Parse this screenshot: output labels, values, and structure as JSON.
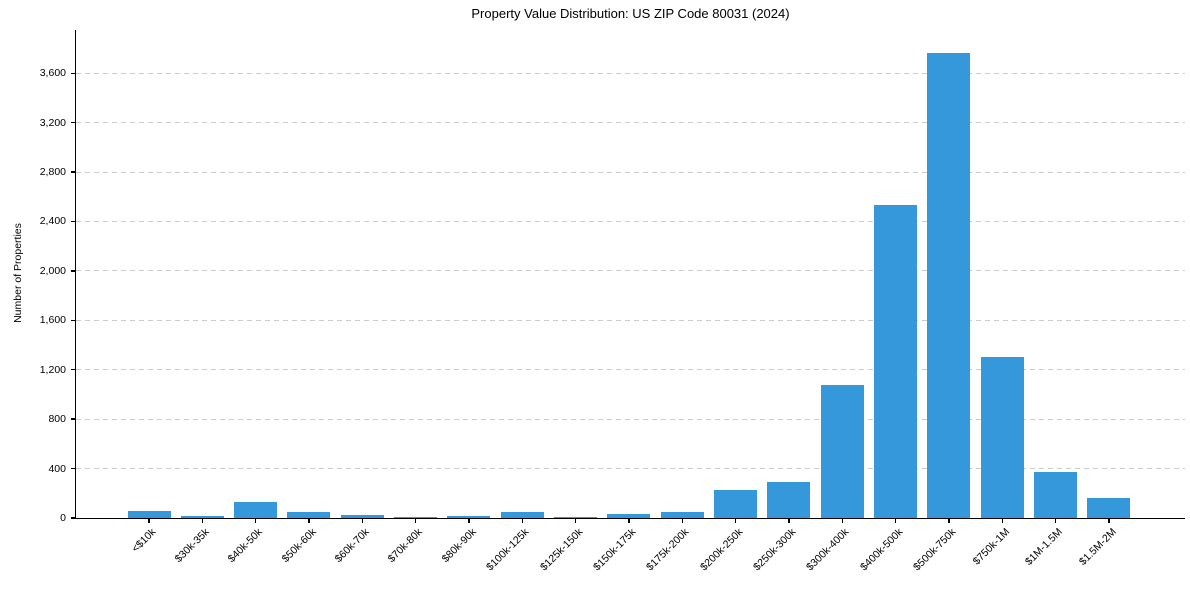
{
  "figure": {
    "title": "Property Value Distribution: US ZIP Code 80031 (2024)"
  },
  "chart_data": {
    "type": "bar",
    "title": "Property Value Distribution: US ZIP Code 80031 (2024)",
    "xlabel": "",
    "ylabel": "Number of Properties",
    "categories": [
      "<$10k",
      "$30k-35k",
      "$40k-50k",
      "$50k-60k",
      "$60k-70k",
      "$70k-80k",
      "$80k-90k",
      "$100k-125k",
      "$125k-150k",
      "$150k-175k",
      "$175k-200k",
      "$200k-250k",
      "$250k-300k",
      "$300k-400k",
      "$400k-500k",
      "$500k-750k",
      "$750k-1M",
      "$1M-1.5M",
      "$1.5M-2M"
    ],
    "values": [
      60,
      20,
      130,
      50,
      25,
      10,
      15,
      50,
      10,
      30,
      45,
      230,
      290,
      1080,
      2530,
      3760,
      1300,
      370,
      160
    ],
    "ylim": [
      0,
      3950
    ],
    "yticks": [
      0,
      400,
      800,
      1200,
      1600,
      2000,
      2400,
      2800,
      3200,
      3600
    ],
    "ytick_labels": [
      "0",
      "400",
      "800",
      "1,200",
      "1,600",
      "2,000",
      "2,400",
      "2,800",
      "3,200",
      "3,600"
    ],
    "grid": "horizontal-dashed",
    "legend": "none",
    "bar_color": "#3498db",
    "grid_color": "#cccccc",
    "axis_color": "#000000",
    "background_color": "#ffffff"
  }
}
